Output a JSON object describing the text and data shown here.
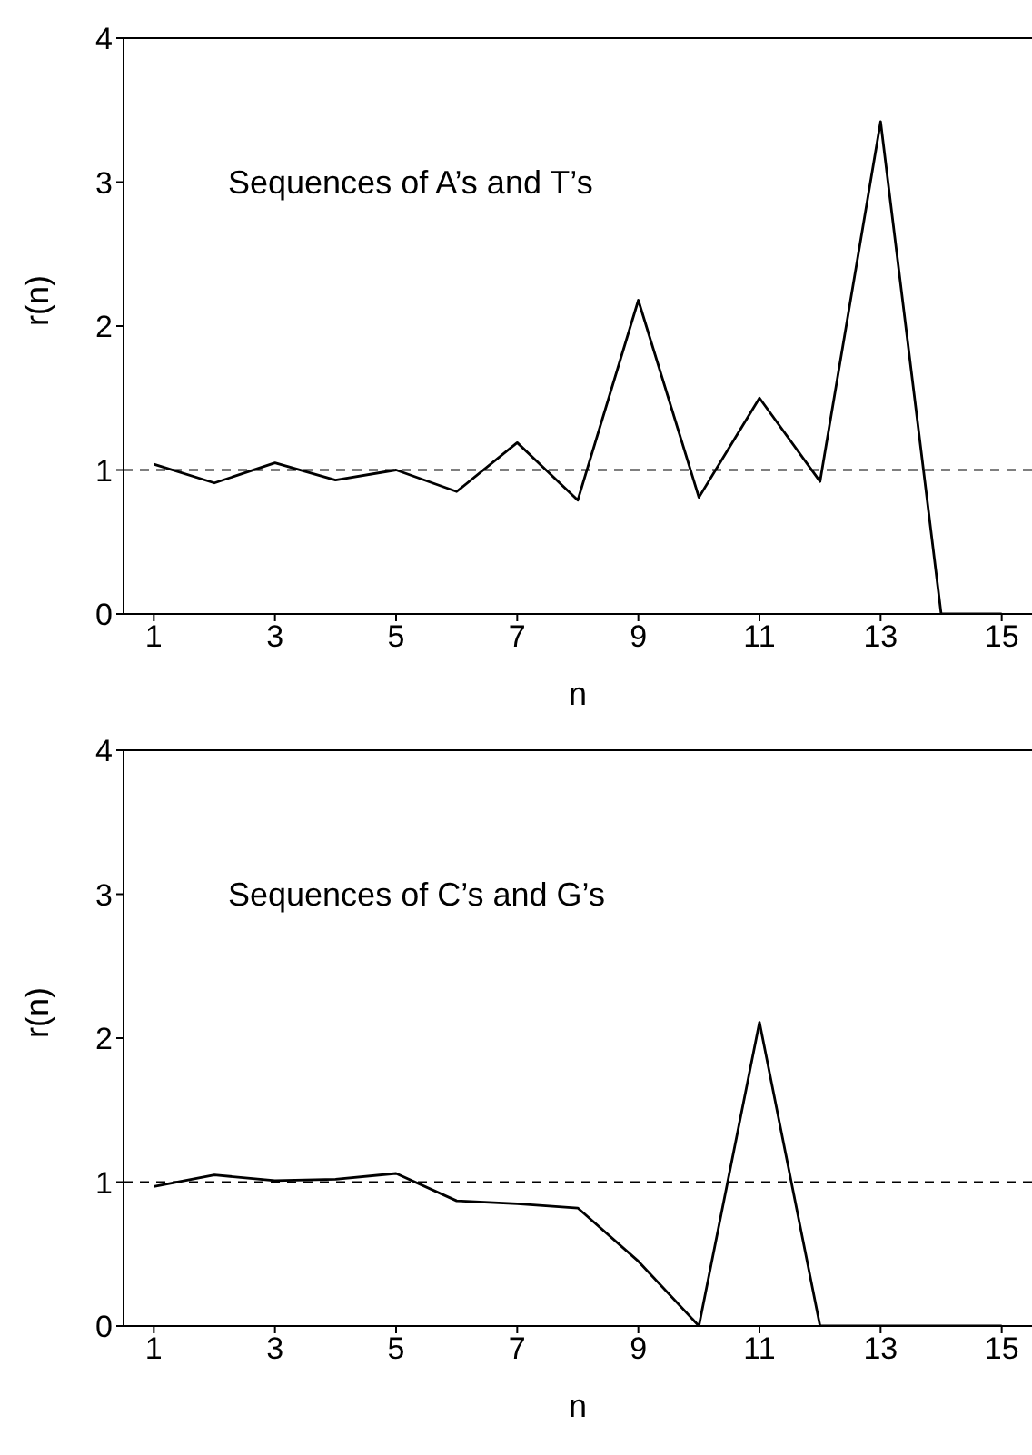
{
  "chart_data": [
    {
      "type": "line",
      "xlabel": "n",
      "ylabel": "r(n)",
      "annotations": [
        "Sequences of A’s and T’s"
      ],
      "x": [
        1,
        2,
        3,
        4,
        5,
        6,
        7,
        8,
        9,
        10,
        11,
        12,
        13,
        14,
        15
      ],
      "series": [
        {
          "color": "#000000",
          "values": [
            1.04,
            0.91,
            1.05,
            0.93,
            1.0,
            0.85,
            1.19,
            0.79,
            2.18,
            0.81,
            1.5,
            0.92,
            3.42,
            0,
            0
          ]
        }
      ],
      "xlim": [
        0.5,
        15.5
      ],
      "xticks": [
        1,
        3,
        5,
        7,
        9,
        11,
        13,
        15
      ],
      "ylim": [
        0,
        4
      ],
      "yticks": [
        0,
        1,
        2,
        3,
        4
      ],
      "ref_lines": [
        {
          "axis": "y",
          "value": 1,
          "color": "#000000",
          "line_style": "dashed"
        }
      ],
      "grid": false,
      "legend": false,
      "marker": "none",
      "line_style": "solid"
    },
    {
      "type": "line",
      "xlabel": "n",
      "ylabel": "r(n)",
      "annotations": [
        "Sequences of C’s and G’s"
      ],
      "x": [
        1,
        2,
        3,
        4,
        5,
        6,
        7,
        8,
        9,
        10,
        11,
        12,
        13,
        14,
        15
      ],
      "series": [
        {
          "color": "#000000",
          "values": [
            0.97,
            1.05,
            1.01,
            1.02,
            1.06,
            0.87,
            0.85,
            0.82,
            0.45,
            0,
            2.11,
            0,
            0,
            0,
            0
          ]
        }
      ],
      "xlim": [
        0.5,
        15.5
      ],
      "xticks": [
        1,
        3,
        5,
        7,
        9,
        11,
        13,
        15
      ],
      "ylim": [
        0,
        4
      ],
      "yticks": [
        0,
        1,
        2,
        3,
        4
      ],
      "ref_lines": [
        {
          "axis": "y",
          "value": 1,
          "color": "#000000",
          "line_style": "dashed"
        }
      ],
      "grid": false,
      "legend": false,
      "marker": "none",
      "line_style": "solid"
    }
  ]
}
